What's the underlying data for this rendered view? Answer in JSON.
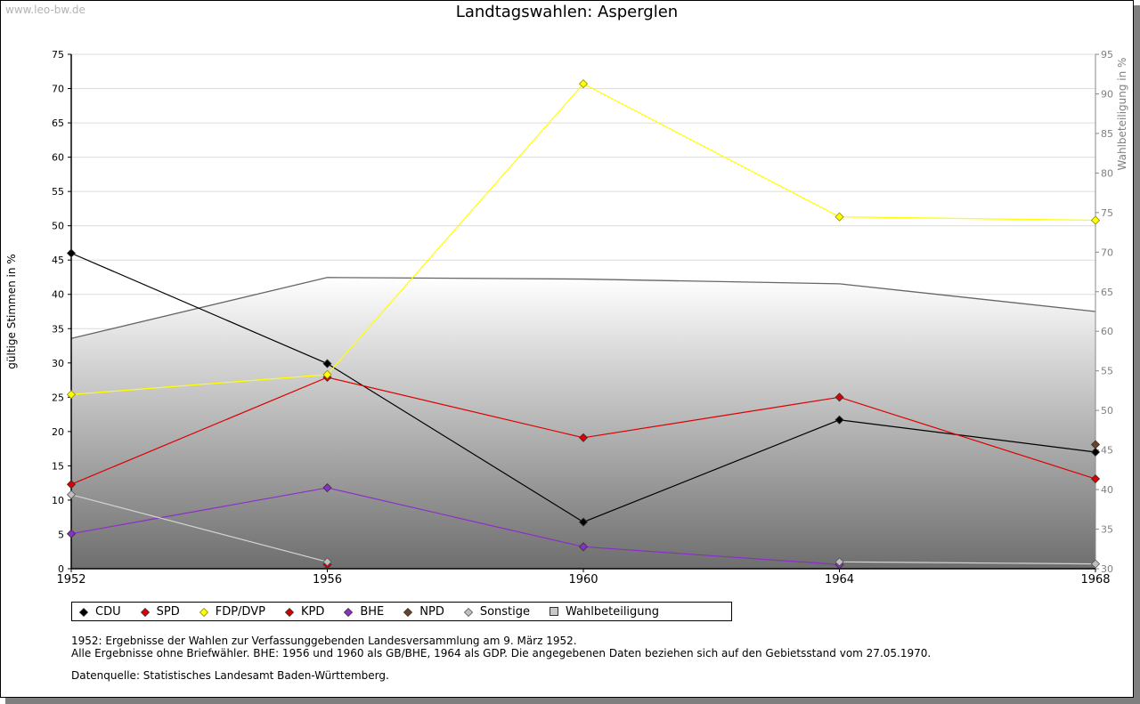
{
  "watermark": "www.leo-bw.de",
  "chart_data": {
    "type": "line",
    "title": "Landtagswahlen: Asperglen",
    "ylabel": "gültige Stimmen in %",
    "y2label": "Wahlbeteiligung in %",
    "x": [
      1952,
      1956,
      1960,
      1964,
      1968
    ],
    "xlim": [
      1952,
      1968
    ],
    "ylim": [
      0,
      75
    ],
    "y2lim": [
      30,
      95
    ],
    "yticks": [
      0,
      5,
      10,
      15,
      20,
      25,
      30,
      35,
      40,
      45,
      50,
      55,
      60,
      65,
      70,
      75
    ],
    "y2ticks": [
      30,
      35,
      40,
      45,
      50,
      55,
      60,
      65,
      70,
      75,
      80,
      85,
      90,
      95
    ],
    "grid": true,
    "series": [
      {
        "name": "CDU",
        "color": "#000000",
        "symbol": "diamond",
        "values": [
          46.0,
          29.9,
          6.8,
          21.7,
          17.0
        ]
      },
      {
        "name": "SPD",
        "color": "#dd0000",
        "symbol": "diamond",
        "values": [
          12.3,
          27.9,
          19.1,
          25.0,
          13.1
        ]
      },
      {
        "name": "FDP/DVP",
        "color": "#ffff00",
        "symbol": "diamond",
        "values": [
          25.4,
          28.3,
          70.7,
          51.3,
          50.8
        ]
      },
      {
        "name": "KPD",
        "color": "#cc0000",
        "symbol": "diamond",
        "values": [
          null,
          0.6,
          null,
          null,
          null
        ]
      },
      {
        "name": "BHE",
        "color": "#8b2fc9",
        "symbol": "diamond",
        "values": [
          5.1,
          11.8,
          3.2,
          0.6,
          null
        ]
      },
      {
        "name": "NPD",
        "color": "#6b4226",
        "symbol": "diamond",
        "values": [
          null,
          null,
          null,
          null,
          18.1
        ]
      },
      {
        "name": "Sonstige",
        "color": "#c0c0c0",
        "symbol": "diamond",
        "values": [
          10.8,
          1.0,
          null,
          1.0,
          0.7
        ]
      }
    ],
    "turnout": {
      "name": "Wahlbeteiligung",
      "values": [
        59.1,
        66.8,
        66.6,
        66.0,
        62.5
      ]
    },
    "legend_position": "bottom-left"
  },
  "notes": {
    "line1": "1952: Ergebnisse der Wahlen zur Verfassunggebenden Landesversammlung am 9. März 1952.",
    "line2": "Alle Ergebnisse ohne Briefwähler. BHE: 1956 und 1960 als GB/BHE, 1964 als GDP. Die angegebenen Daten beziehen sich auf den Gebietsstand vom 27.05.1970.",
    "source": "Datenquelle: Statistisches Landesamt Baden-Württemberg."
  }
}
